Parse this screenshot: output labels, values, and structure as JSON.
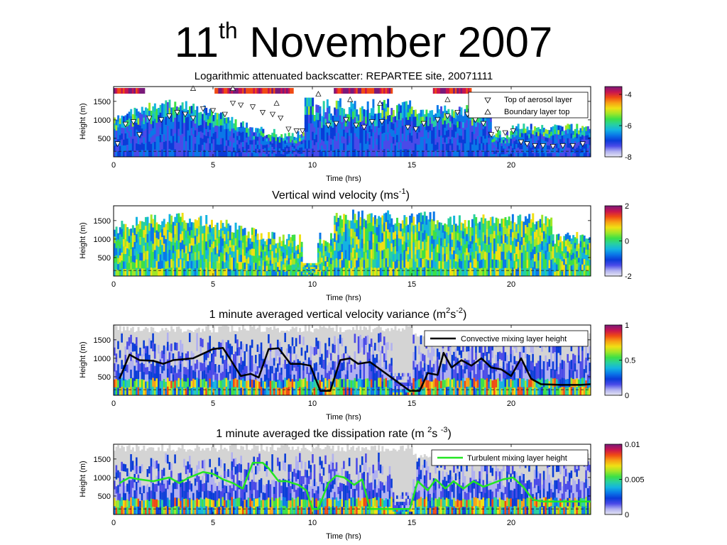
{
  "slide": {
    "title_main": "11",
    "title_sup": "th",
    "title_rest": "November 2007"
  },
  "colors": {
    "colormap": [
      "#e6e6f2",
      "#b0b0f0",
      "#4a4ae8",
      "#0a3cd8",
      "#0a78e8",
      "#14b4e0",
      "#28d0a0",
      "#3ce048",
      "#a0e628",
      "#f0e014",
      "#f8a014",
      "#f04a14",
      "#c81450",
      "#7a1a7a"
    ],
    "black_line": "#000000",
    "green_line": "#22e622"
  },
  "chart_data": [
    {
      "type": "heatmap",
      "title": "Logarithmic attenuated backscatter: REPARTEE site, 20071111",
      "xlabel": "Time (hrs)",
      "ylabel": "Height (m)",
      "xlim": [
        0,
        24
      ],
      "ylim": [
        0,
        1900
      ],
      "xticks": [
        "0",
        "5",
        "10",
        "15",
        "20"
      ],
      "yticks": [
        "500",
        "1000",
        "1500"
      ],
      "colorbar": {
        "range": [
          -8,
          -3.5
        ],
        "ticks": [
          "-4",
          "-6",
          "-8"
        ]
      },
      "legend": {
        "placement": "top-right",
        "entries": [
          {
            "marker": "down-triangle",
            "label": "Top of aerosol layer"
          },
          {
            "marker": "up-triangle",
            "label": "Boundary layer top"
          }
        ]
      },
      "aerosol_top": {
        "x": [
          0.2,
          0.6,
          1.0,
          1.3,
          1.8,
          2.4,
          2.8,
          3.2,
          3.6,
          4.0,
          4.5,
          5.0,
          5.6,
          6.0,
          6.4,
          7.0,
          7.5,
          8.0,
          8.4,
          8.8,
          9.2,
          9.5,
          10.8,
          11.2,
          11.7,
          12.2,
          12.6,
          13.0,
          13.5,
          14.8,
          15.2,
          15.6,
          16.3,
          16.8,
          17.3,
          17.8,
          18.2,
          18.6,
          19.0,
          19.3,
          19.7,
          20.1,
          20.5,
          20.8,
          21.2,
          21.6,
          22.1,
          22.6,
          23.1,
          23.6
        ],
        "y": [
          350,
          880,
          950,
          600,
          1050,
          1000,
          1100,
          1200,
          1150,
          1050,
          1300,
          1250,
          1150,
          1450,
          1400,
          1350,
          1200,
          1150,
          1050,
          750,
          700,
          700,
          850,
          900,
          1000,
          850,
          800,
          950,
          950,
          800,
          750,
          900,
          1000,
          1100,
          1200,
          1150,
          1000,
          900,
          600,
          750,
          650,
          700,
          400,
          350,
          300,
          300,
          280,
          300,
          300,
          350
        ]
      },
      "boundary_top": {
        "x": [
          4.0,
          6.0,
          8.2,
          10.3,
          11.9,
          13.4,
          16.8
        ],
        "y": [
          1850,
          1850,
          1450,
          1700,
          1550,
          1450,
          1550
        ]
      }
    },
    {
      "type": "heatmap",
      "title_main": "Vertical wind velocity (ms",
      "title_sup": "-1",
      "title_end": ")",
      "xlabel": "Time (hrs)",
      "ylabel": "Height (m)",
      "xlim": [
        0,
        24
      ],
      "ylim": [
        0,
        1900
      ],
      "xticks": [
        "0",
        "5",
        "10",
        "15",
        "20"
      ],
      "yticks": [
        "500",
        "1000",
        "1500"
      ],
      "colorbar": {
        "range": [
          -2,
          2
        ],
        "ticks": [
          "2",
          "0",
          "-2"
        ]
      }
    },
    {
      "type": "line",
      "title_main": "1 minute averaged vertical velocity variance (m",
      "title_sup1": "2",
      "title_mid": "s",
      "title_sup2": "-2",
      "title_end": ")",
      "xlabel": "Time (hrs)",
      "ylabel": "Height (m)",
      "xlim": [
        0,
        24
      ],
      "ylim": [
        0,
        1900
      ],
      "xticks": [
        "0",
        "5",
        "10",
        "15",
        "20"
      ],
      "yticks": [
        "500",
        "1000",
        "1500"
      ],
      "colorbar": {
        "range": [
          0,
          1
        ],
        "ticks": [
          "1",
          "0.5",
          "0"
        ]
      },
      "legend": {
        "placement": "top-right",
        "label": "Convective mixing layer height"
      },
      "series": [
        {
          "name": "Convective mixing layer height",
          "x": [
            0.3,
            0.8,
            1.3,
            2.0,
            2.5,
            3.0,
            4.0,
            5.0,
            5.5,
            5.9,
            6.4,
            6.9,
            7.3,
            7.8,
            8.3,
            8.9,
            9.4,
            9.9,
            10.4,
            10.9,
            11.4,
            11.9,
            12.3,
            12.9,
            14.9,
            15.4,
            15.8,
            16.3,
            16.6,
            17.0,
            17.5,
            18.0,
            18.5,
            19.0,
            19.5,
            20.0,
            20.5,
            21.0,
            21.5,
            22.5,
            23.5,
            24.0
          ],
          "y": [
            450,
            1100,
            950,
            930,
            850,
            950,
            1000,
            1250,
            1280,
            950,
            520,
            580,
            480,
            1250,
            1270,
            850,
            850,
            800,
            120,
            120,
            950,
            1000,
            850,
            900,
            120,
            120,
            600,
            550,
            1150,
            750,
            950,
            800,
            1000,
            750,
            700,
            520,
            1000,
            450,
            300,
            280,
            280,
            300
          ]
        }
      ]
    },
    {
      "type": "line",
      "title_main": "1 minute averaged tke dissipation rate (m ",
      "title_sup1": "2",
      "title_mid": "s ",
      "title_sup2": "-3",
      "title_end": ")",
      "xlabel": "Time (hrs)",
      "ylabel": "Height (m)",
      "xlim": [
        0,
        24
      ],
      "ylim": [
        0,
        1900
      ],
      "xticks": [
        "0",
        "5",
        "10",
        "15",
        "20"
      ],
      "yticks": [
        "500",
        "1000",
        "1500"
      ],
      "colorbar": {
        "range": [
          0,
          0.01
        ],
        "ticks": [
          "0.01",
          "0.005",
          "0"
        ]
      },
      "legend": {
        "placement": "top-right",
        "label": "Turbulent mixing layer height"
      },
      "series": [
        {
          "name": "Turbulent mixing layer height",
          "x": [
            0.3,
            0.8,
            1.3,
            2.0,
            2.8,
            3.3,
            3.8,
            4.5,
            5.0,
            5.5,
            6.0,
            6.5,
            7.0,
            7.5,
            7.8,
            8.3,
            8.7,
            9.3,
            9.7,
            10.0,
            10.3,
            10.8,
            11.2,
            11.6,
            12.1,
            12.5,
            12.9,
            14.9,
            15.3,
            15.8,
            16.2,
            16.7,
            17.1,
            17.6,
            18.1,
            18.6,
            19.1,
            19.6,
            20.1,
            20.6,
            21.1,
            21.6,
            22.6,
            23.8,
            24.0
          ],
          "y": [
            850,
            1000,
            950,
            900,
            1000,
            850,
            1000,
            1150,
            1100,
            950,
            850,
            700,
            1400,
            1400,
            1250,
            900,
            900,
            800,
            650,
            150,
            150,
            850,
            1050,
            1000,
            800,
            950,
            150,
            150,
            900,
            650,
            950,
            700,
            900,
            700,
            900,
            750,
            850,
            950,
            1000,
            750,
            400,
            350,
            350,
            350,
            350
          ]
        }
      ]
    }
  ]
}
